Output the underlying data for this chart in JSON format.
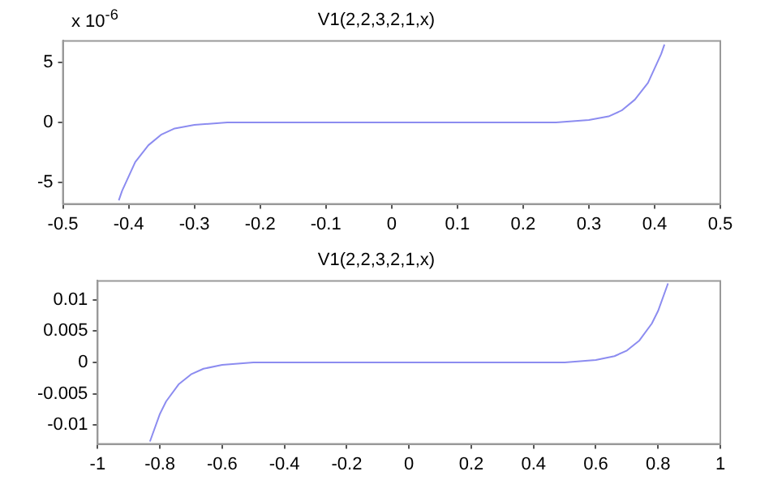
{
  "chart_data": [
    {
      "type": "line",
      "title": "V1(2,2,3,2,1,x)",
      "annotations": [
        "x 10$^{-6}$"
      ],
      "marker": "none",
      "grid": false,
      "legend": false,
      "x": [
        -0.415,
        -0.41,
        -0.39,
        -0.37,
        -0.35,
        -0.33,
        -0.3,
        -0.25,
        -0.2,
        -0.1,
        0,
        0.1,
        0.2,
        0.25,
        0.3,
        0.33,
        0.35,
        0.37,
        0.39,
        0.41,
        0.415
      ],
      "series": [
        {
          "color": "#8c8cf0",
          "values": [
            -6.5,
            -5.7,
            -3.3,
            -1.9,
            -1.0,
            -0.5,
            -0.2,
            0,
            0,
            0,
            0,
            0,
            0,
            0,
            0.2,
            0.5,
            1.0,
            1.9,
            3.3,
            5.7,
            6.5
          ]
        }
      ],
      "xlim": [
        -0.5,
        0.5
      ],
      "xticks": [
        -0.5,
        -0.4,
        -0.3,
        -0.2,
        -0.1,
        0,
        0.1,
        0.2,
        0.3,
        0.4,
        0.5
      ],
      "ylim": [
        -6.8,
        6.8
      ],
      "yticks": [
        -5,
        0,
        5
      ]
    },
    {
      "type": "line",
      "title": "V1(2,2,3,2,1,x)",
      "marker": "none",
      "grid": false,
      "legend": false,
      "x": [
        -0.832,
        -0.8,
        -0.78,
        -0.74,
        -0.7,
        -0.66,
        -0.6,
        -0.5,
        -0.4,
        -0.2,
        0,
        0.2,
        0.4,
        0.5,
        0.6,
        0.66,
        0.7,
        0.74,
        0.78,
        0.8,
        0.832
      ],
      "series": [
        {
          "color": "#8c8cf0",
          "values": [
            -0.0126,
            -0.0082,
            -0.0062,
            -0.0035,
            -0.0019,
            -0.001,
            -0.0004,
            0,
            0,
            0,
            0,
            0,
            0,
            0,
            0.0004,
            0.001,
            0.0019,
            0.0035,
            0.0062,
            0.0082,
            0.0126
          ]
        }
      ],
      "xlim": [
        -1,
        1
      ],
      "xticks": [
        -1,
        -0.8,
        -0.6,
        -0.4,
        -0.2,
        0,
        0.2,
        0.4,
        0.6,
        0.8,
        1
      ],
      "ylim": [
        -0.013,
        0.013
      ],
      "yticks": [
        -0.01,
        -0.005,
        0,
        0.005,
        0.01
      ]
    }
  ]
}
